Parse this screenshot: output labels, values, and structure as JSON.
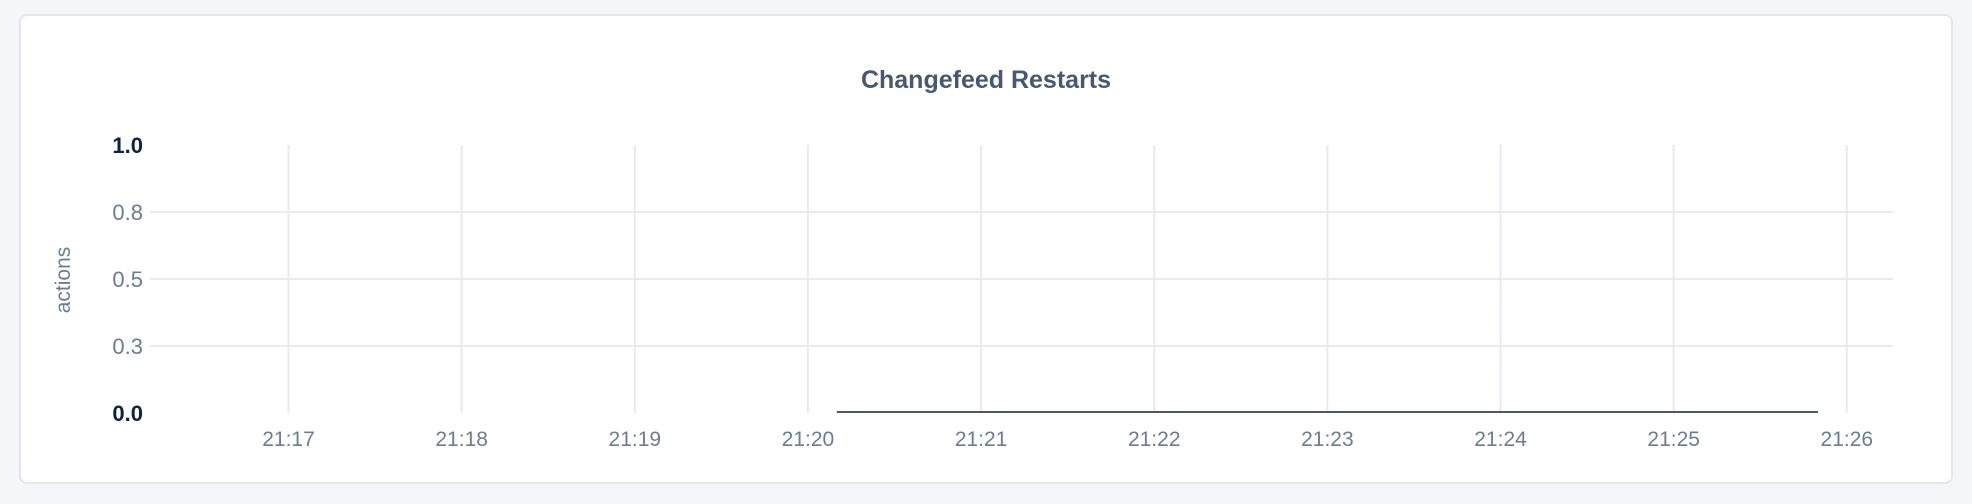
{
  "chart_data": {
    "type": "line",
    "title": "Changefeed Restarts",
    "ylabel": "actions",
    "xlabel": "",
    "ylim": [
      0,
      1
    ],
    "xlim": [
      "21:16:12",
      "21:26:16"
    ],
    "y_ticks": [
      {
        "value": 0,
        "label": "0.0",
        "bold": true
      },
      {
        "value": 0.25,
        "label": "0.3",
        "bold": false
      },
      {
        "value": 0.5,
        "label": "0.5",
        "bold": false
      },
      {
        "value": 0.75,
        "label": "0.8",
        "bold": false
      },
      {
        "value": 1,
        "label": "1.0",
        "bold": true
      }
    ],
    "x_ticks": [
      "21:17",
      "21:18",
      "21:19",
      "21:20",
      "21:21",
      "21:22",
      "21:23",
      "21:24",
      "21:25",
      "21:26"
    ],
    "grid": true,
    "series": [
      {
        "color": "#475872",
        "points": [
          [
            "21:20:10",
            0
          ],
          [
            "21:25:50",
            0
          ]
        ]
      }
    ],
    "colors": {
      "grid": "#e7eaf0",
      "tick_text": "#6b7c93",
      "bold_tick_text": "#0d2440",
      "title": "#475872"
    }
  }
}
